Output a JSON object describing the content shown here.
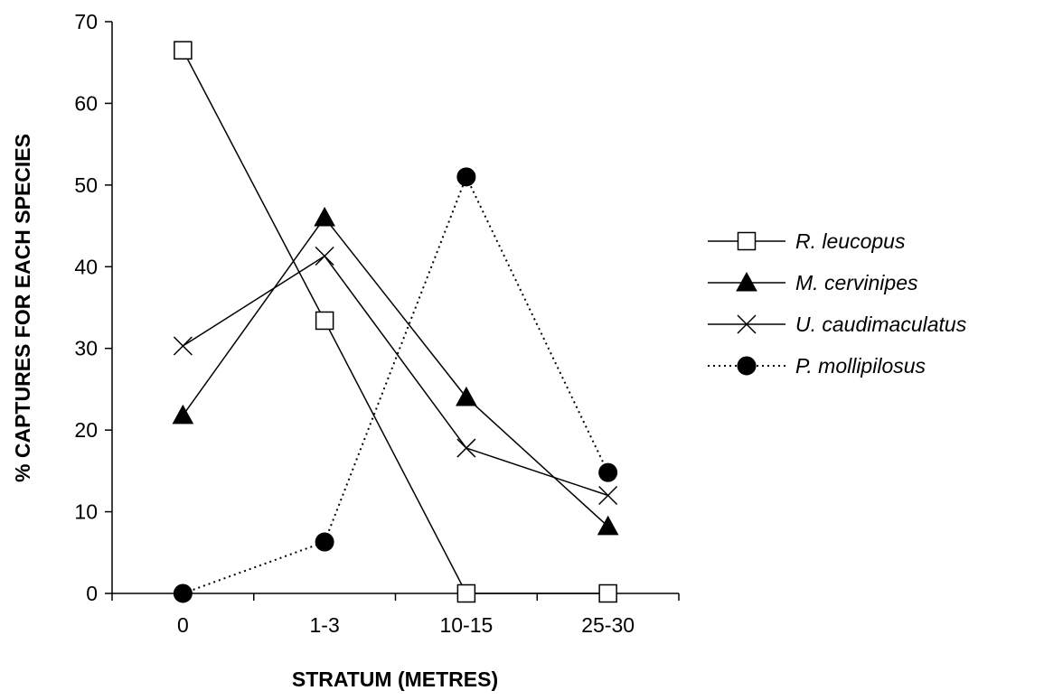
{
  "chart_data": {
    "type": "line",
    "categories": [
      "0",
      "1-3",
      "10-15",
      "25-30"
    ],
    "xlabel": "STRATUM (METRES)",
    "ylabel": "% CAPTURES FOR EACH SPECIES",
    "ylim": [
      0,
      70
    ],
    "yticks": [
      0,
      10,
      20,
      30,
      40,
      50,
      60,
      70
    ],
    "grid": false,
    "legend_position": "right",
    "series": [
      {
        "name": "R. leucopus",
        "values": [
          66.5,
          33.4,
          0,
          0
        ],
        "marker": "open-square",
        "line": "solid",
        "color": "#000000"
      },
      {
        "name": "M. cervinipes",
        "values": [
          21.8,
          46.0,
          24.0,
          8.2
        ],
        "marker": "filled-triangle",
        "line": "solid",
        "color": "#000000"
      },
      {
        "name": "U. caudimaculatus",
        "values": [
          30.3,
          41.3,
          17.8,
          12.0
        ],
        "marker": "cross",
        "line": "solid",
        "color": "#000000"
      },
      {
        "name": "P. mollipilosus",
        "values": [
          0,
          6.3,
          51.0,
          14.8
        ],
        "marker": "filled-circle",
        "line": "dotted",
        "color": "#000000"
      }
    ]
  }
}
